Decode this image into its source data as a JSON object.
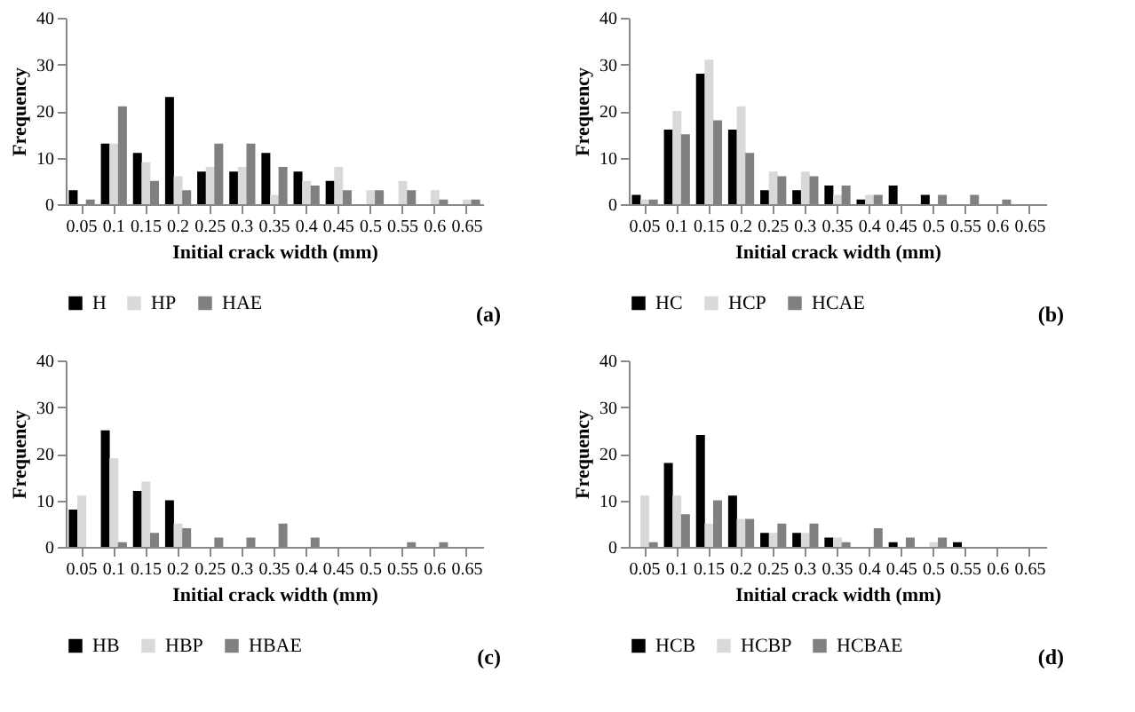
{
  "chart_data": [
    {
      "type": "bar",
      "xlabel": "Initial crack width (mm)",
      "ylabel": "Frequency",
      "categories": [
        "0.05",
        "0.1",
        "0.15",
        "0.2",
        "0.25",
        "0.3",
        "0.35",
        "0.4",
        "0.45",
        "0.5",
        "0.55",
        "0.6",
        "0.65"
      ],
      "ylim": [
        0,
        40
      ],
      "yticks": [
        0,
        10,
        20,
        30,
        40
      ],
      "legend": "bottom",
      "grid": false,
      "annotations": [
        "(a)"
      ],
      "series": [
        {
          "name": "H",
          "color": "#000000",
          "values": [
            3,
            13,
            11,
            23,
            7,
            7,
            11,
            7,
            5,
            0,
            0,
            0,
            0
          ]
        },
        {
          "name": "HP",
          "color": "#d9d9d9",
          "values": [
            0,
            13,
            9,
            6,
            8,
            8,
            2,
            5,
            8,
            3,
            5,
            3,
            1
          ]
        },
        {
          "name": "HAE",
          "color": "#808080",
          "values": [
            1,
            21,
            5,
            3,
            13,
            13,
            8,
            4,
            3,
            3,
            3,
            1,
            1
          ]
        }
      ]
    },
    {
      "type": "bar",
      "xlabel": "Initial crack width (mm)",
      "ylabel": "Frequency",
      "categories": [
        "0.05",
        "0.1",
        "0.15",
        "0.2",
        "0.25",
        "0.3",
        "0.35",
        "0.4",
        "0.45",
        "0.5",
        "0.55",
        "0.6",
        "0.65"
      ],
      "ylim": [
        0,
        40
      ],
      "yticks": [
        0,
        10,
        20,
        30,
        40
      ],
      "legend": "bottom",
      "grid": false,
      "annotations": [
        "(b)"
      ],
      "series": [
        {
          "name": "HC",
          "color": "#000000",
          "values": [
            2,
            16,
            28,
            16,
            3,
            3,
            4,
            1,
            4,
            2,
            0,
            0,
            0
          ]
        },
        {
          "name": "HCP",
          "color": "#d9d9d9",
          "values": [
            1,
            20,
            31,
            21,
            7,
            7,
            2,
            2,
            0,
            0,
            0,
            0,
            0
          ]
        },
        {
          "name": "HCAE",
          "color": "#808080",
          "values": [
            1,
            15,
            18,
            11,
            6,
            6,
            4,
            2,
            0,
            2,
            2,
            1,
            0
          ]
        }
      ]
    },
    {
      "type": "bar",
      "xlabel": "Initial crack width (mm)",
      "ylabel": "Frequency",
      "categories": [
        "0.05",
        "0.1",
        "0.15",
        "0.2",
        "0.25",
        "0.3",
        "0.35",
        "0.4",
        "0.45",
        "0.5",
        "0.55",
        "0.6",
        "0.65"
      ],
      "ylim": [
        0,
        40
      ],
      "yticks": [
        0,
        10,
        20,
        30,
        40
      ],
      "legend": "bottom",
      "grid": false,
      "annotations": [
        "(c)"
      ],
      "series": [
        {
          "name": "HB",
          "color": "#000000",
          "values": [
            8,
            25,
            12,
            10,
            0,
            0,
            0,
            0,
            0,
            0,
            0,
            0,
            0
          ]
        },
        {
          "name": "HBP",
          "color": "#d9d9d9",
          "values": [
            11,
            19,
            14,
            5,
            0,
            0,
            0,
            0,
            0,
            0,
            0,
            0,
            0
          ]
        },
        {
          "name": "HBAE",
          "color": "#808080",
          "values": [
            0,
            1,
            3,
            4,
            2,
            2,
            5,
            2,
            0,
            0,
            1,
            1,
            0
          ]
        }
      ]
    },
    {
      "type": "bar",
      "xlabel": "Initial crack width (mm)",
      "ylabel": "Frequency",
      "categories": [
        "0.05",
        "0.1",
        "0.15",
        "0.2",
        "0.25",
        "0.3",
        "0.35",
        "0.4",
        "0.45",
        "0.5",
        "0.55",
        "0.6",
        "0.65"
      ],
      "ylim": [
        0,
        40
      ],
      "yticks": [
        0,
        10,
        20,
        30,
        40
      ],
      "legend": "bottom",
      "grid": false,
      "annotations": [
        "(d)"
      ],
      "series": [
        {
          "name": "HCB",
          "color": "#000000",
          "values": [
            0,
            18,
            24,
            11,
            3,
            3,
            2,
            0,
            1,
            0,
            1,
            0,
            0
          ]
        },
        {
          "name": "HCBP",
          "color": "#d9d9d9",
          "values": [
            11,
            11,
            5,
            6,
            3,
            3,
            2,
            0,
            0,
            1,
            0,
            0,
            0
          ]
        },
        {
          "name": "HCBAE",
          "color": "#808080",
          "values": [
            1,
            7,
            10,
            6,
            5,
            5,
            1,
            4,
            2,
            2,
            0,
            0,
            0
          ]
        }
      ]
    }
  ]
}
